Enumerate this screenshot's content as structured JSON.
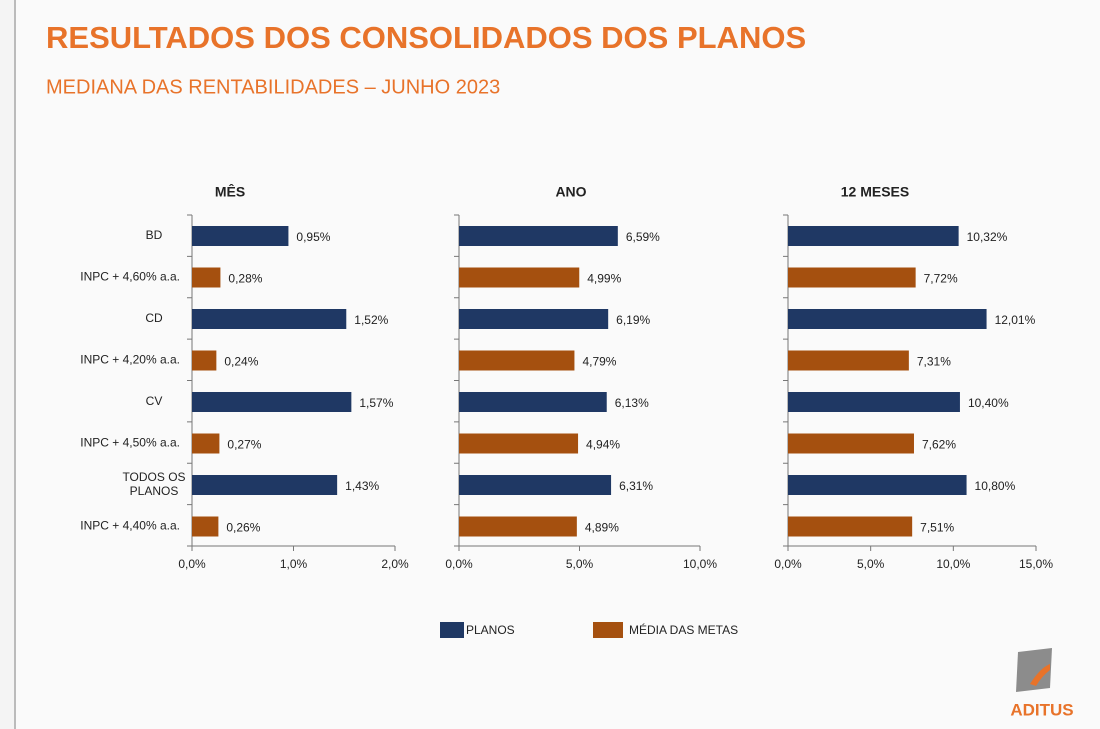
{
  "title": "RESULTADOS DOS CONSOLIDADOS DOS PLANOS",
  "subtitle": "MEDIANA DAS RENTABILIDADES – JUNHO 2023",
  "logo_text": "ADITUS",
  "legend": [
    {
      "label": "PLANOS",
      "color": "#1f3864"
    },
    {
      "label": "MÉDIA DAS METAS",
      "color": "#a5500f"
    }
  ],
  "chart_data": [
    {
      "type": "hbar",
      "title": "MÊS",
      "categories": [
        "BD",
        "INPC + 4,60% a.a.",
        "CD",
        "INPC + 4,20% a.a.",
        "CV",
        "INPC + 4,50% a.a.",
        "TODOS OS\nPLANOS",
        "INPC + 4,40% a.a."
      ],
      "values": [
        0.95,
        0.28,
        1.52,
        0.24,
        1.57,
        0.27,
        1.43,
        0.26
      ],
      "value_labels": [
        "0,95%",
        "0,28%",
        "1,52%",
        "0,24%",
        "1,57%",
        "0,27%",
        "1,43%",
        "0,26%"
      ],
      "colors": [
        "#1f3864",
        "#a5500f",
        "#1f3864",
        "#a5500f",
        "#1f3864",
        "#a5500f",
        "#1f3864",
        "#a5500f"
      ],
      "xlim": [
        0,
        2
      ],
      "xticks": [
        {
          "value": 0,
          "label": "0,0%"
        },
        {
          "value": 1,
          "label": "1,0%"
        },
        {
          "value": 2,
          "label": "2,0%"
        }
      ]
    },
    {
      "type": "hbar",
      "title": "ANO",
      "values": [
        6.59,
        4.99,
        6.19,
        4.79,
        6.13,
        4.94,
        6.31,
        4.89
      ],
      "value_labels": [
        "6,59%",
        "4,99%",
        "6,19%",
        "4,79%",
        "6,13%",
        "4,94%",
        "6,31%",
        "4,89%"
      ],
      "colors": [
        "#1f3864",
        "#a5500f",
        "#1f3864",
        "#a5500f",
        "#1f3864",
        "#a5500f",
        "#1f3864",
        "#a5500f"
      ],
      "xlim": [
        0,
        10
      ],
      "xticks": [
        {
          "value": 0,
          "label": "0,0%"
        },
        {
          "value": 5,
          "label": "5,0%"
        },
        {
          "value": 10,
          "label": "10,0%"
        }
      ]
    },
    {
      "type": "hbar",
      "title": "12 MESES",
      "values": [
        10.32,
        7.72,
        12.01,
        7.31,
        10.4,
        7.62,
        10.8,
        7.51
      ],
      "value_labels": [
        "10,32%",
        "7,72%",
        "12,01%",
        "7,31%",
        "10,40%",
        "7,62%",
        "10,80%",
        "7,51%"
      ],
      "colors": [
        "#1f3864",
        "#a5500f",
        "#1f3864",
        "#a5500f",
        "#1f3864",
        "#a5500f",
        "#1f3864",
        "#a5500f"
      ],
      "xlim": [
        0,
        15
      ],
      "xticks": [
        {
          "value": 0,
          "label": "0,0%"
        },
        {
          "value": 5,
          "label": "5,0%"
        },
        {
          "value": 10,
          "label": "10,0%"
        },
        {
          "value": 15,
          "label": "15,0%"
        }
      ]
    }
  ]
}
